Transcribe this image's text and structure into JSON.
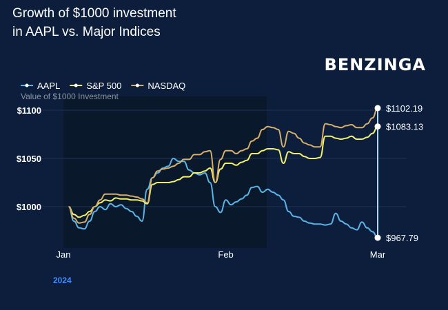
{
  "header": {
    "title_line1": "Growth of $1000 investment",
    "title_line2": "in AAPL vs. Major Indices",
    "brand": "BENZINGA"
  },
  "chart_data": {
    "type": "line",
    "ylabel": "Value of $1000 Investment",
    "year_label": "2024",
    "ylim": [
      960,
      1110
    ],
    "yticks": [
      {
        "value": 1000,
        "label": "$1000"
      },
      {
        "value": 1050,
        "label": "$1050"
      },
      {
        "value": 1100,
        "label": "$1100"
      }
    ],
    "xlim": [
      0,
      62
    ],
    "xticks": [
      {
        "value": 0,
        "label": "Jan"
      },
      {
        "value": 31,
        "label": "Feb"
      },
      {
        "value": 60,
        "label": "Mar"
      }
    ],
    "shaded_range": [
      0,
      38.8
    ],
    "legend": {
      "placement": "top-left"
    },
    "colors": {
      "highlight": "#ffffff",
      "vertical_line": "#a6dcf7"
    },
    "series": [
      {
        "name": "AAPL",
        "color": "#5ab4e6",
        "end_label": "$967.79",
        "points": [
          [
            1,
            1000
          ],
          [
            2,
            985
          ],
          [
            3,
            978
          ],
          [
            4,
            977
          ],
          [
            5,
            985
          ],
          [
            6,
            995
          ],
          [
            7,
            1000
          ],
          [
            8,
            997
          ],
          [
            9,
            1003
          ],
          [
            10,
            1000
          ],
          [
            11,
            1002
          ],
          [
            12,
            998
          ],
          [
            13,
            995
          ],
          [
            14,
            990
          ],
          [
            15,
            985
          ],
          [
            16,
            1018
          ],
          [
            17,
            1030
          ],
          [
            18,
            1035
          ],
          [
            19,
            1040
          ],
          [
            20,
            1042
          ],
          [
            21,
            1050
          ],
          [
            22,
            1047
          ],
          [
            23,
            1047
          ],
          [
            24,
            1038
          ],
          [
            25,
            1035
          ],
          [
            26,
            1033
          ],
          [
            27,
            1035
          ],
          [
            28,
            1025
          ],
          [
            29,
            1000
          ],
          [
            30,
            994
          ],
          [
            31,
            1007
          ],
          [
            32,
            1002
          ],
          [
            33,
            1005
          ],
          [
            34,
            1008
          ],
          [
            35,
            1012
          ],
          [
            36,
            1020
          ],
          [
            37,
            1021
          ],
          [
            38,
            1015
          ],
          [
            39,
            1018
          ],
          [
            40,
            1015
          ],
          [
            41,
            1012
          ],
          [
            42,
            1007
          ],
          [
            43,
            995
          ],
          [
            44,
            990
          ],
          [
            45,
            989
          ],
          [
            46,
            985
          ],
          [
            47,
            983
          ],
          [
            48,
            982
          ],
          [
            49,
            982
          ],
          [
            50,
            981
          ],
          [
            51,
            982
          ],
          [
            52,
            993
          ],
          [
            53,
            985
          ],
          [
            54,
            982
          ],
          [
            55,
            978
          ],
          [
            56,
            976
          ],
          [
            57,
            984
          ],
          [
            58,
            978
          ],
          [
            59,
            974
          ],
          [
            60,
            967.79
          ]
        ]
      },
      {
        "name": "S&P 500",
        "color": "#f3f26a",
        "end_label": "$1083.13",
        "points": [
          [
            1,
            1000
          ],
          [
            2,
            992
          ],
          [
            3,
            989
          ],
          [
            4,
            991
          ],
          [
            5,
            995
          ],
          [
            6,
            1000
          ],
          [
            7,
            1004
          ],
          [
            8,
            1007
          ],
          [
            9,
            1006
          ],
          [
            10,
            1009
          ],
          [
            11,
            1008
          ],
          [
            12,
            1008
          ],
          [
            13,
            1007
          ],
          [
            14,
            1007
          ],
          [
            15,
            1006
          ],
          [
            16,
            1003
          ],
          [
            17,
            1023
          ],
          [
            18,
            1025
          ],
          [
            19,
            1025
          ],
          [
            20,
            1025
          ],
          [
            21,
            1026
          ],
          [
            22,
            1028
          ],
          [
            23,
            1031
          ],
          [
            24,
            1031
          ],
          [
            25,
            1035
          ],
          [
            26,
            1035
          ],
          [
            27,
            1037
          ],
          [
            28,
            1040
          ],
          [
            29,
            1025
          ],
          [
            30,
            1039
          ],
          [
            31,
            1045
          ],
          [
            32,
            1045
          ],
          [
            33,
            1043
          ],
          [
            34,
            1046
          ],
          [
            35,
            1048
          ],
          [
            36,
            1055
          ],
          [
            37,
            1055
          ],
          [
            38,
            1058
          ],
          [
            39,
            1060
          ],
          [
            40,
            1060
          ],
          [
            41,
            1059
          ],
          [
            42,
            1045
          ],
          [
            43,
            1057
          ],
          [
            44,
            1055
          ],
          [
            45,
            1055
          ],
          [
            46,
            1052
          ],
          [
            47,
            1050
          ],
          [
            48,
            1050
          ],
          [
            49,
            1051
          ],
          [
            50,
            1073
          ],
          [
            51,
            1073
          ],
          [
            52,
            1071
          ],
          [
            53,
            1070
          ],
          [
            54,
            1071
          ],
          [
            55,
            1073
          ],
          [
            56,
            1070
          ],
          [
            57,
            1070
          ],
          [
            58,
            1072
          ],
          [
            59,
            1076
          ],
          [
            60,
            1083.13
          ]
        ]
      },
      {
        "name": "NASDAQ",
        "color": "#d6b06a",
        "end_label": "$1102.19",
        "points": [
          [
            1,
            1000
          ],
          [
            2,
            988
          ],
          [
            3,
            983
          ],
          [
            4,
            984
          ],
          [
            5,
            992
          ],
          [
            6,
            1000
          ],
          [
            7,
            1007
          ],
          [
            8,
            1013
          ],
          [
            9,
            1013
          ],
          [
            10,
            1013
          ],
          [
            11,
            1012
          ],
          [
            12,
            1012
          ],
          [
            13,
            1011
          ],
          [
            14,
            1010
          ],
          [
            15,
            1008
          ],
          [
            16,
            1004
          ],
          [
            17,
            1030
          ],
          [
            18,
            1037
          ],
          [
            19,
            1039
          ],
          [
            20,
            1040
          ],
          [
            21,
            1042
          ],
          [
            22,
            1045
          ],
          [
            23,
            1049
          ],
          [
            24,
            1049
          ],
          [
            25,
            1054
          ],
          [
            26,
            1054
          ],
          [
            27,
            1057
          ],
          [
            28,
            1058
          ],
          [
            29,
            1025
          ],
          [
            30,
            1049
          ],
          [
            31,
            1058
          ],
          [
            32,
            1058
          ],
          [
            33,
            1055
          ],
          [
            34,
            1058
          ],
          [
            35,
            1060
          ],
          [
            36,
            1068
          ],
          [
            37,
            1071
          ],
          [
            38,
            1080
          ],
          [
            39,
            1083
          ],
          [
            40,
            1082
          ],
          [
            41,
            1080
          ],
          [
            42,
            1062
          ],
          [
            43,
            1078
          ],
          [
            44,
            1076
          ],
          [
            45,
            1071
          ],
          [
            46,
            1066
          ],
          [
            47,
            1064
          ],
          [
            48,
            1062
          ],
          [
            49,
            1062
          ],
          [
            50,
            1086
          ],
          [
            51,
            1085
          ],
          [
            52,
            1083
          ],
          [
            53,
            1082
          ],
          [
            54,
            1084
          ],
          [
            55,
            1085
          ],
          [
            56,
            1082
          ],
          [
            57,
            1082
          ],
          [
            58,
            1086
          ],
          [
            59,
            1092
          ],
          [
            60,
            1102.19
          ]
        ]
      }
    ]
  }
}
